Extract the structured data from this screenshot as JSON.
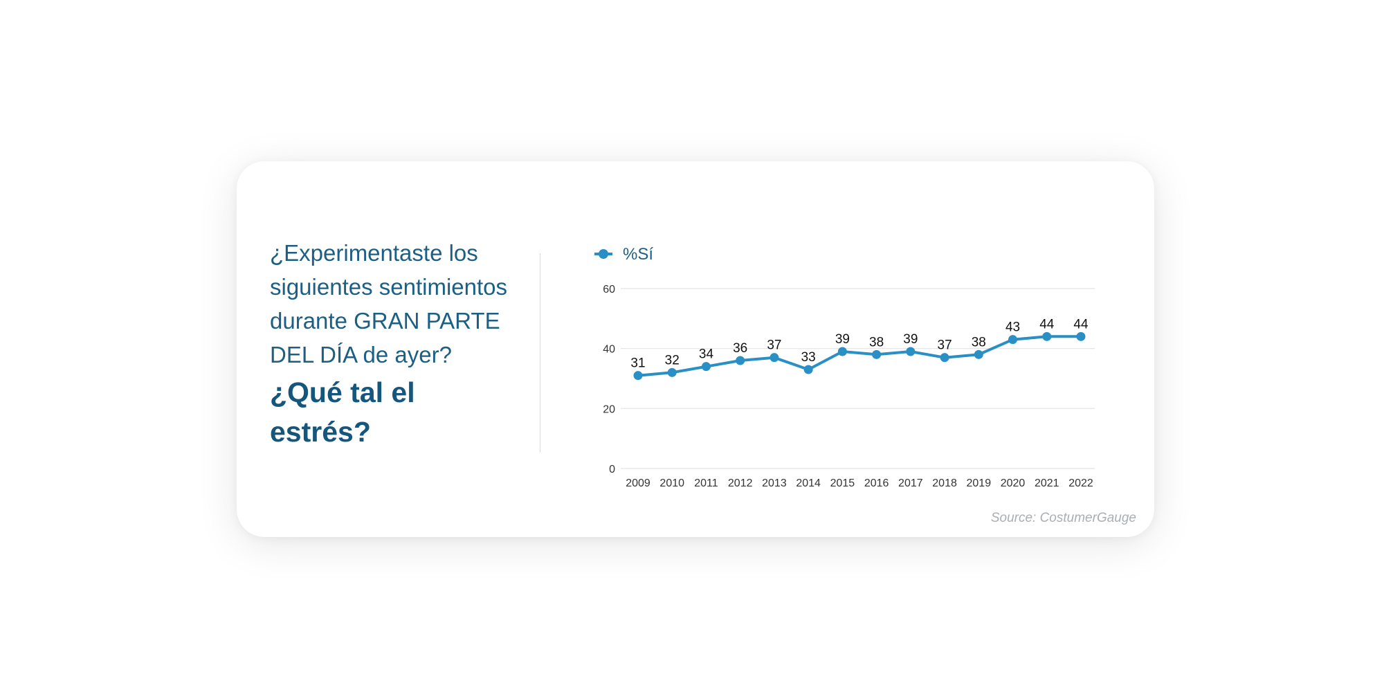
{
  "question": {
    "lines": "¿Experimentaste los siguientes sentimientos durante GRAN PARTE DEL DÍA de ayer?",
    "bold": "¿Qué tal el estrés?"
  },
  "source": "Source: CostumerGauge",
  "colors": {
    "series": "#2a8fc4",
    "title": "#1c5f85",
    "grid": "#e3e3e3"
  },
  "chart_data": {
    "type": "line",
    "title": "",
    "xlabel": "",
    "ylabel": "",
    "x": [
      "2009",
      "2010",
      "2011",
      "2012",
      "2013",
      "2014",
      "2015",
      "2016",
      "2017",
      "2018",
      "2019",
      "2020",
      "2021",
      "2022"
    ],
    "series": [
      {
        "name": "%Sí",
        "values": [
          31,
          32,
          34,
          36,
          37,
          33,
          39,
          38,
          39,
          37,
          38,
          43,
          44,
          44
        ]
      }
    ],
    "yticks": [
      "0",
      "20",
      "40",
      "60"
    ],
    "ylim": [
      0,
      60
    ],
    "grid": true,
    "legend": "top-left",
    "data_labels": true
  }
}
